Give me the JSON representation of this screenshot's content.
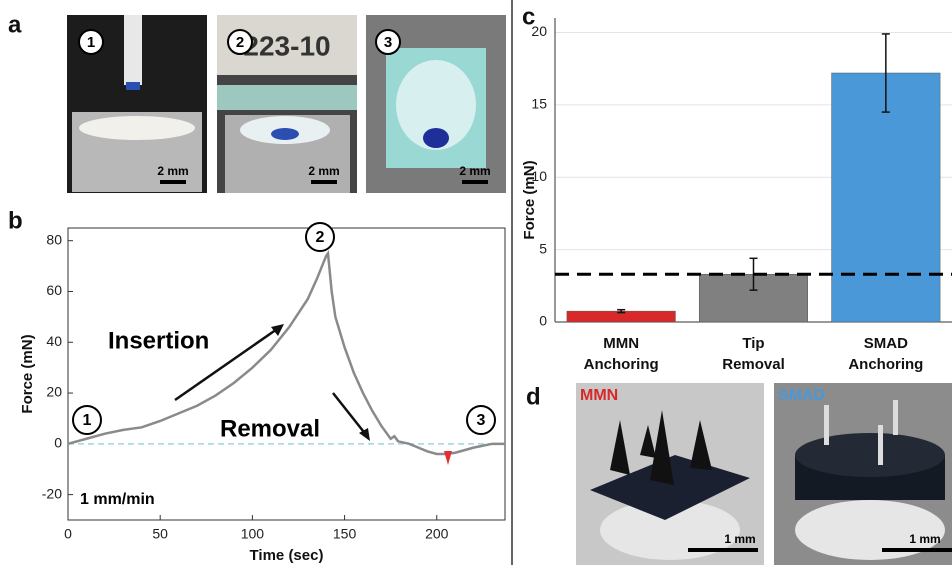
{
  "chart_data": [
    {
      "type": "line",
      "panel": "b",
      "xlabel": "Time (sec)",
      "ylabel": "Force (mN)",
      "x": [
        0,
        10,
        20,
        30,
        40,
        50,
        60,
        70,
        80,
        90,
        100,
        110,
        120,
        130,
        135,
        140,
        141,
        143,
        145,
        150,
        155,
        160,
        165,
        170,
        175,
        177,
        179,
        185,
        190,
        195,
        200,
        205,
        210,
        220,
        230,
        237
      ],
      "values": [
        0,
        2,
        4,
        5.5,
        6.5,
        9,
        12,
        15,
        19,
        24,
        30,
        37,
        46,
        57,
        65,
        74,
        75,
        60,
        50,
        38,
        28,
        20,
        13,
        7,
        2,
        3,
        1,
        0,
        -1.5,
        -3,
        -4,
        -4,
        -3.5,
        -1.5,
        0,
        0
      ],
      "color": "#8a8a8a",
      "baseline": 0,
      "baseline_color": "#9fd3ea",
      "xlim": [
        0,
        237
      ],
      "ylim": [
        -30,
        85
      ],
      "xticks": [
        0,
        50,
        100,
        150,
        200
      ],
      "yticks": [
        -20,
        0,
        20,
        40,
        60,
        80
      ],
      "annotations": {
        "insertion": "Insertion",
        "removal": "Removal",
        "rate": "1 mm/min",
        "step1": "1",
        "step2": "2",
        "step3": "3"
      }
    },
    {
      "type": "bar",
      "panel": "c",
      "ylabel": "Force (mN)",
      "categories": [
        [
          "MMN",
          "Anchoring"
        ],
        [
          "Tip",
          "Removal"
        ],
        [
          "SMAD",
          "Anchoring"
        ]
      ],
      "values": [
        0.75,
        3.3,
        17.2
      ],
      "errors": [
        0.1,
        1.1,
        2.7
      ],
      "colors": [
        "#d8282a",
        "#808080",
        "#4a98d8"
      ],
      "threshold": 3.3,
      "ylim": [
        0,
        21
      ],
      "yticks": [
        0,
        5,
        10,
        15,
        20
      ]
    }
  ],
  "panel_a": {
    "label": "a",
    "photos": [
      {
        "step": "1",
        "scale": "2 mm"
      },
      {
        "step": "2",
        "scale": "2 mm",
        "print": "223-10"
      },
      {
        "step": "3",
        "scale": "2 mm"
      }
    ]
  },
  "panel_d": {
    "label": "d",
    "images": [
      {
        "name": "MMN",
        "scale": "1 mm"
      },
      {
        "name": "SMAD",
        "scale": "1 mm"
      }
    ]
  }
}
